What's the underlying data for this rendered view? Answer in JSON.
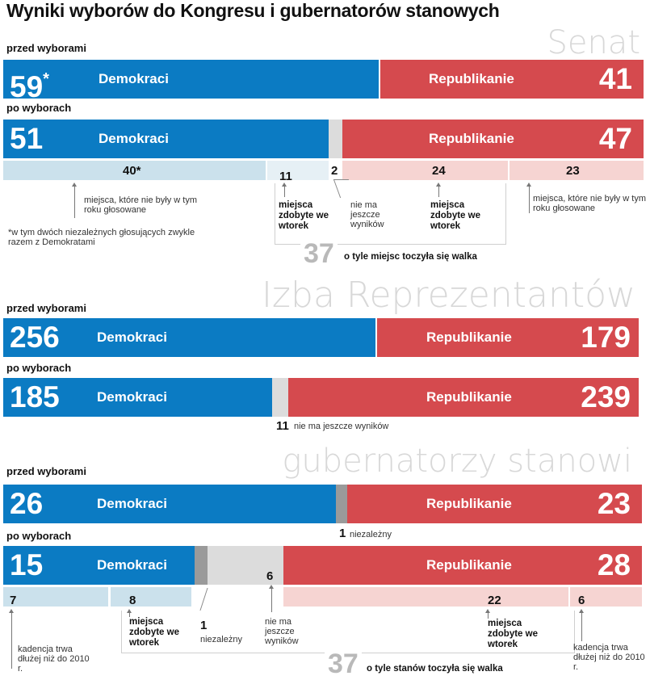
{
  "title": "Wyniki wyborów do Kongresu i gubernatorów stanowych",
  "colors": {
    "democrats": "#0b7bc3",
    "republicans": "#d54a4e",
    "no_result": "#dcdcdc",
    "independent": "#9a9a9a",
    "not_voted_dem": "#cbe1ec",
    "not_voted_rep": "#f6d4d2"
  },
  "labels": {
    "before": "przed wyborami",
    "after": "po wyborach",
    "dem": "Demokraci",
    "rep": "Republikanie"
  },
  "senate": {
    "section": "Senat",
    "before": {
      "dem": "59",
      "dem_mark": "*",
      "rep": "41"
    },
    "after": {
      "dem": "51",
      "rep": "47"
    },
    "breakdown": {
      "dem_not_voted": "40*",
      "dem_won": "11",
      "no_result": "2",
      "rep_won": "24",
      "rep_not_voted": "23"
    },
    "notes": {
      "not_voted": "miejsca, które nie były w tym roku głosowane",
      "footnote": "*w tym dwóch niezależnych głosujących zwykle razem z Demokratami",
      "won": "miejsca zdobyte we wtorek",
      "no_result": "nie ma jeszcze wyników"
    },
    "contested": {
      "number": "37",
      "text": "o tyle miejsc toczyła się walka"
    }
  },
  "house": {
    "section": "Izba Reprezentantów",
    "before": {
      "dem": "256",
      "rep": "179"
    },
    "after": {
      "dem": "185",
      "rep": "239"
    },
    "no_result": {
      "number": "11",
      "text": "nie ma jeszcze wyników"
    }
  },
  "governors": {
    "section": "gubernatorzy stanowi",
    "before": {
      "dem": "26",
      "rep": "23"
    },
    "independent_before": {
      "number": "1",
      "text": "niezależny"
    },
    "after": {
      "dem": "15",
      "rep": "28"
    },
    "breakdown": {
      "dem_not_voted": "7",
      "dem_won": "8",
      "independent": "1",
      "no_result": "6",
      "rep_won": "22",
      "rep_not_voted": "6"
    },
    "notes": {
      "term": "kadencja trwa dłużej niż do 2010 r.",
      "won": "miejsca zdobyte we wtorek",
      "independent": "niezależny",
      "no_result": "nie ma jeszcze wyników"
    },
    "contested": {
      "number": "37",
      "text": "o tyle stanów toczyła się walka"
    }
  },
  "chart_data": [
    {
      "type": "bar",
      "title": "Senat",
      "categories": [
        "przed wyborami",
        "po wyborach"
      ],
      "series": [
        {
          "name": "Demokraci",
          "values": [
            59,
            51
          ]
        },
        {
          "name": "Nie ma jeszcze wyników",
          "values": [
            0,
            2
          ]
        },
        {
          "name": "Republikanie",
          "values": [
            41,
            47
          ]
        }
      ]
    },
    {
      "type": "bar",
      "title": "Izba Reprezentantów",
      "categories": [
        "przed wyborami",
        "po wyborach"
      ],
      "series": [
        {
          "name": "Demokraci",
          "values": [
            256,
            185
          ]
        },
        {
          "name": "Nie ma jeszcze wyników",
          "values": [
            0,
            11
          ]
        },
        {
          "name": "Republikanie",
          "values": [
            179,
            239
          ]
        }
      ]
    },
    {
      "type": "bar",
      "title": "gubernatorzy stanowi",
      "categories": [
        "przed wyborami",
        "po wyborach"
      ],
      "series": [
        {
          "name": "Demokraci",
          "values": [
            26,
            15
          ]
        },
        {
          "name": "Niezależny",
          "values": [
            1,
            1
          ]
        },
        {
          "name": "Nie ma jeszcze wyników",
          "values": [
            0,
            6
          ]
        },
        {
          "name": "Republikanie",
          "values": [
            23,
            28
          ]
        }
      ]
    }
  ]
}
